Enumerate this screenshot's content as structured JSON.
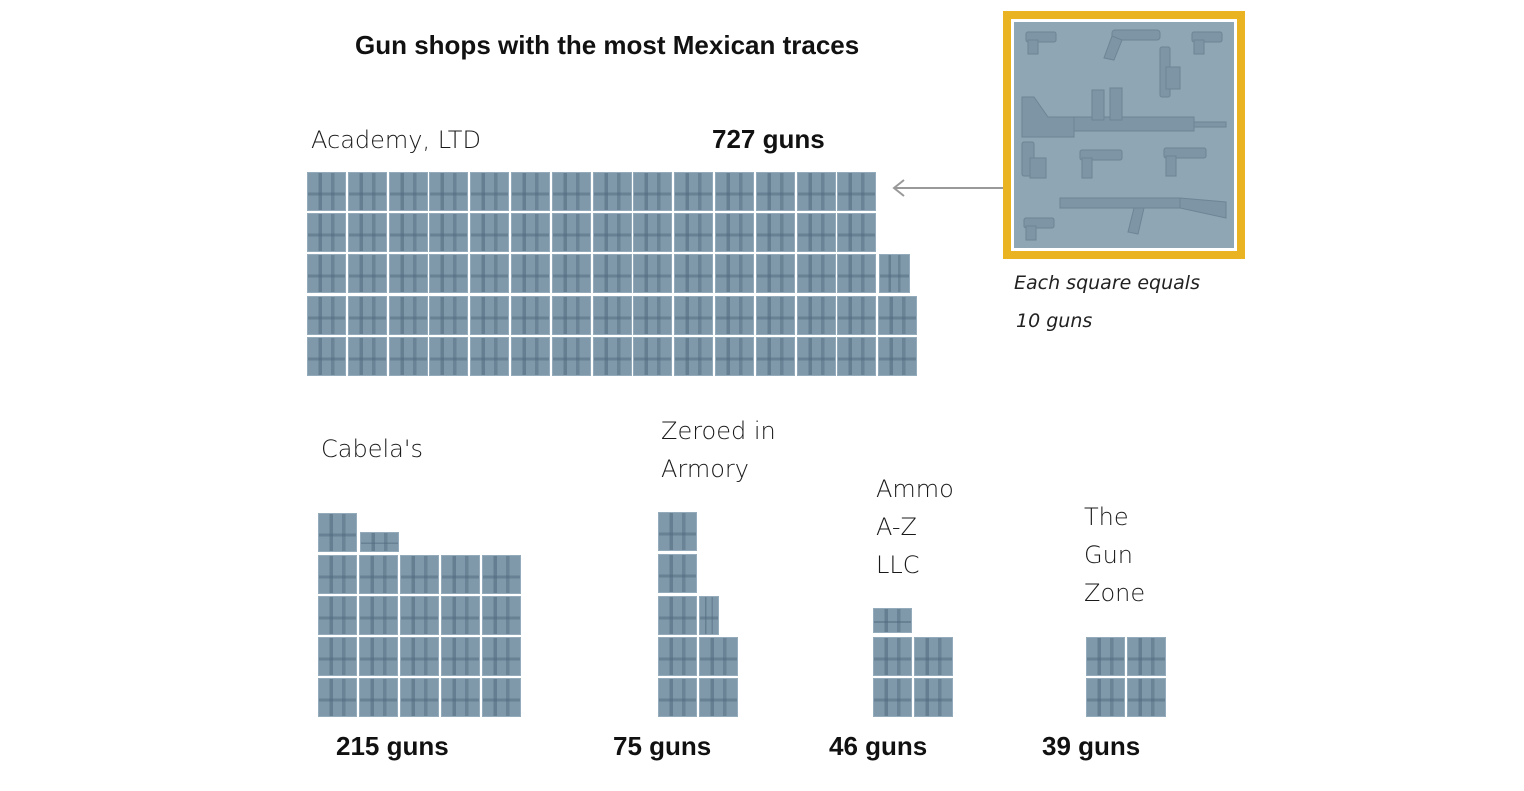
{
  "chart_data": {
    "type": "waffle",
    "title": "Gun shops with the most Mexican traces",
    "unit": "guns",
    "unit_per_square": 10,
    "legend": {
      "line1": "Each square equals",
      "line2": "10 guns"
    },
    "series": [
      {
        "name": "Academy, LTD",
        "value": 727,
        "label": "727 guns"
      },
      {
        "name": "Cabela's",
        "value": 215,
        "label": "215 guns"
      },
      {
        "name": "Zeroed in Armory",
        "name_lines": [
          "Zeroed in",
          "Armory"
        ],
        "value": 75,
        "label": "75 guns"
      },
      {
        "name": "Ammo A-Z LLC",
        "name_lines": [
          "Ammo",
          "A-Z",
          "LLC"
        ],
        "value": 46,
        "label": "46 guns"
      },
      {
        "name": "The Gun Zone",
        "name_lines": [
          "The",
          "Gun",
          "Zone"
        ],
        "value": 39,
        "label": "39 guns"
      }
    ],
    "colors": {
      "square": "#7f99aa",
      "legend_border": "#e9b321",
      "arrow": "#999999"
    }
  }
}
